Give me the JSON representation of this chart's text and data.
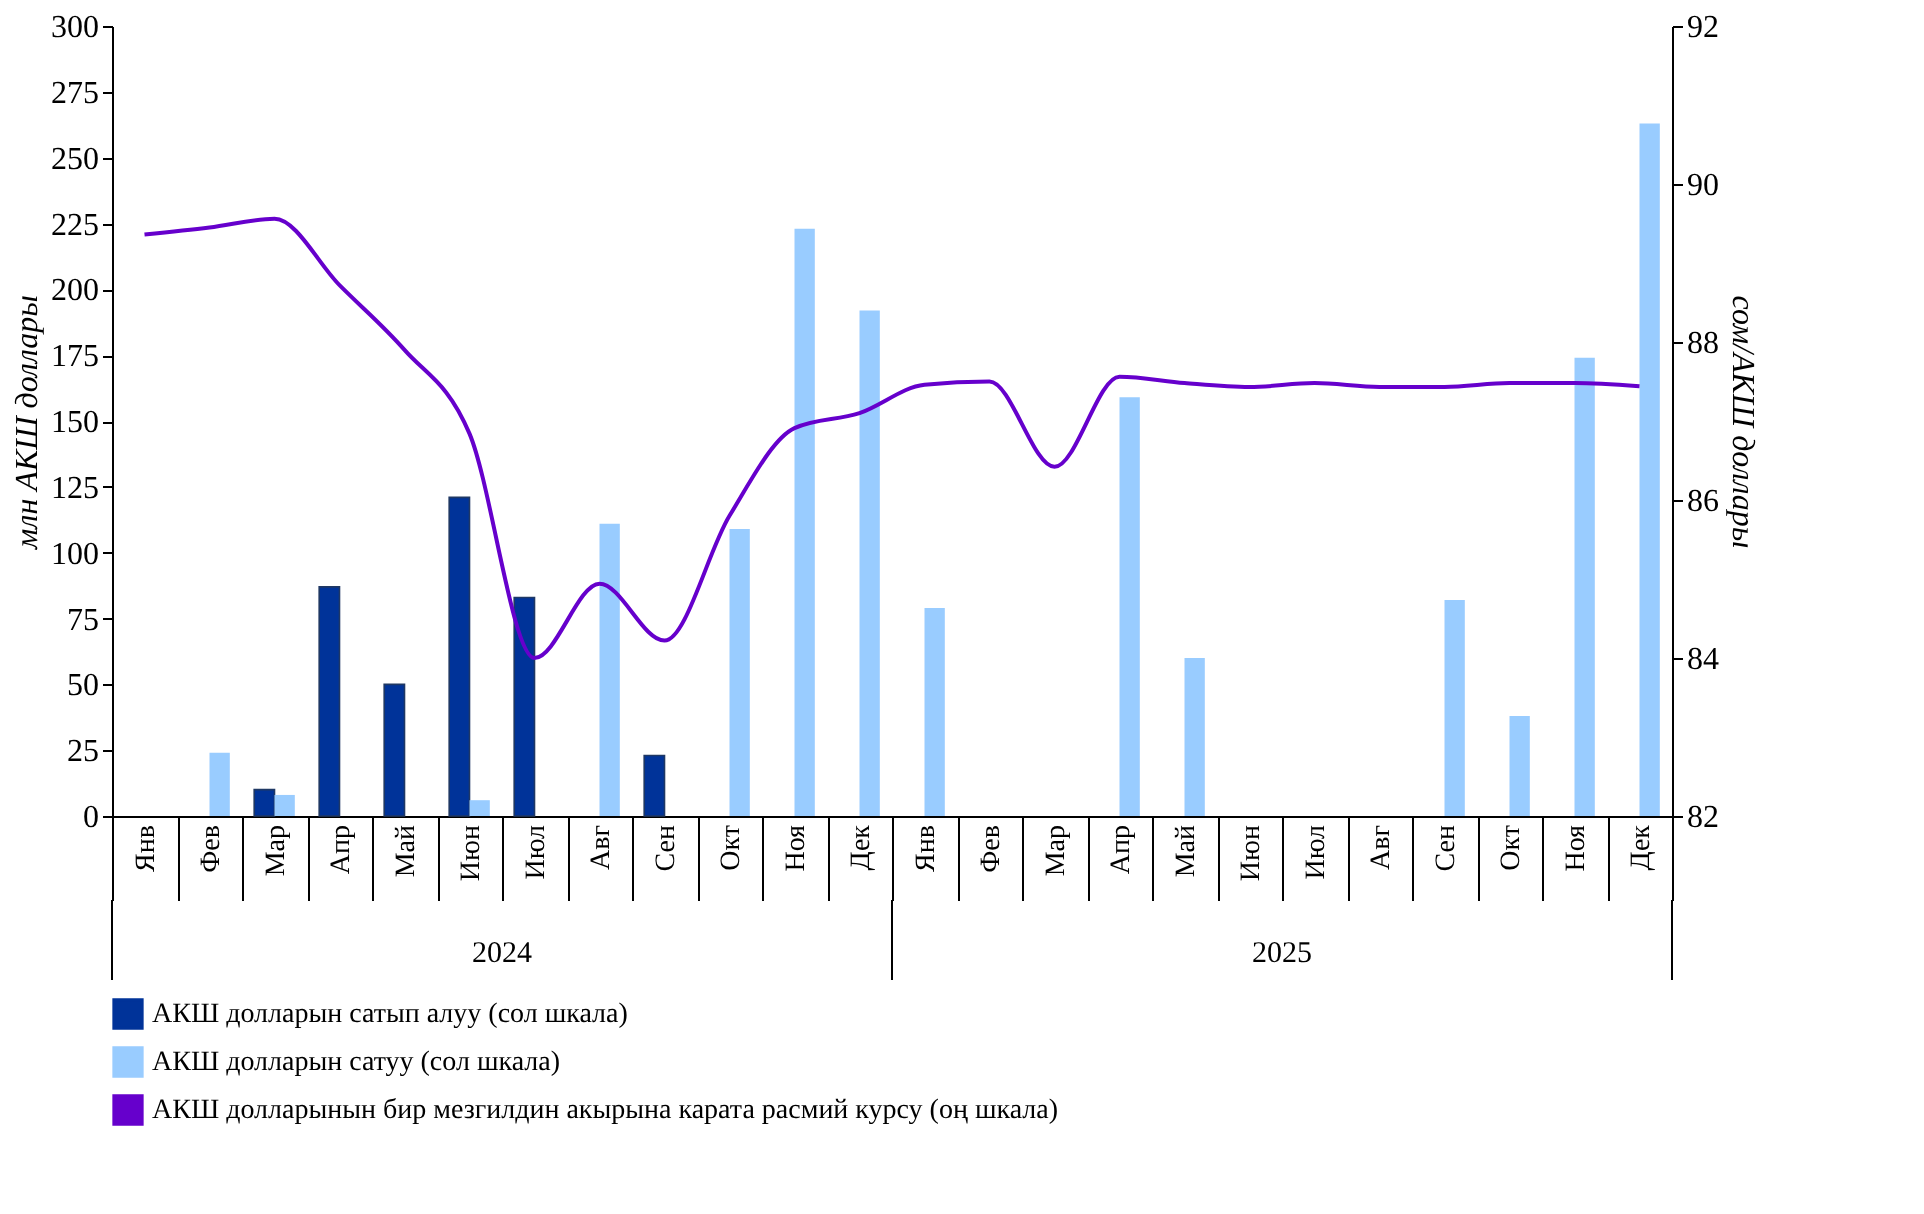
{
  "chart_data": {
    "type": "bar",
    "categories": [
      "Янв",
      "Фев",
      "Мар",
      "Апр",
      "Май",
      "Июн",
      "Июл",
      "Авг",
      "Сен",
      "Окт",
      "Ноя",
      "Дек",
      "Янв",
      "Фев",
      "Мар",
      "Апр",
      "Май",
      "Июн",
      "Июл",
      "Авг",
      "Сен",
      "Окт",
      "Ноя",
      "Дек"
    ],
    "annotations": [
      "2024",
      "2025"
    ],
    "ylabel": "млн АКШ доллары",
    "y2label": "сом/АКШ доллары",
    "ylim": [
      0,
      300
    ],
    "yticks": [
      0,
      25,
      50,
      75,
      100,
      125,
      150,
      175,
      200,
      225,
      250,
      275,
      300
    ],
    "y2lim": [
      82,
      92
    ],
    "y2ticks": [
      82,
      84,
      86,
      88,
      90,
      92
    ],
    "legend": "bottom",
    "grid": false,
    "series": [
      {
        "name": "АКШ долларын сатып алуу (сол шкала)",
        "color": "#003399",
        "values": [
          null,
          null,
          10,
          87,
          50,
          121,
          83,
          null,
          23,
          null,
          null,
          null,
          null,
          null,
          null,
          null,
          null,
          null,
          null,
          null,
          null,
          null,
          null,
          null
        ]
      },
      {
        "name": "АКШ долларын сатуу (сол шкала)",
        "color": "#99ccff",
        "values": [
          null,
          24,
          8,
          null,
          null,
          6,
          null,
          111,
          null,
          109,
          223,
          192,
          79,
          null,
          null,
          159,
          60,
          null,
          null,
          null,
          82,
          38,
          174,
          263
        ]
      },
      {
        "name": "АКШ долларынын бир мезгилдин акырына карата  расмий курсу (оң шкала)",
        "type": "line",
        "axis": "y2",
        "color": "#6600cc",
        "values": [
          89.36,
          89.45,
          89.56,
          88.72,
          87.9,
          86.84,
          84.0,
          84.94,
          84.22,
          85.8,
          86.91,
          87.1,
          87.46,
          87.5,
          86.42,
          87.56,
          87.48,
          87.43,
          87.48,
          87.43,
          87.43,
          87.48,
          87.48,
          87.44
        ]
      }
    ]
  }
}
